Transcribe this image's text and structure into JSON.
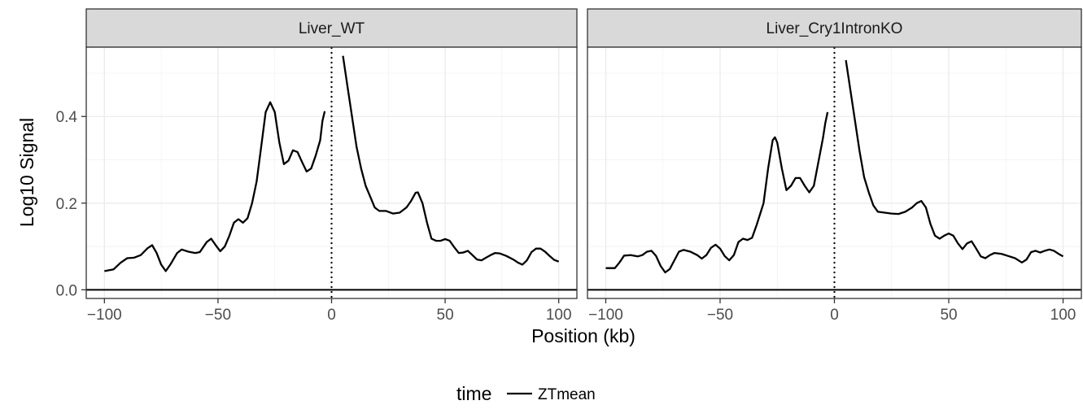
{
  "chart_data": {
    "type": "line",
    "xlabel": "Position (kb)",
    "ylabel": "Log10 Signal",
    "xlim": [
      -108,
      108
    ],
    "ylim": [
      -0.02,
      0.56
    ],
    "x_ticks": [
      -100,
      -50,
      0,
      50,
      100
    ],
    "x_tick_labels": [
      "−100",
      "−50",
      "0",
      "50",
      "100"
    ],
    "y_ticks": [
      0.0,
      0.2,
      0.4
    ],
    "y_tick_labels": [
      "0.0",
      "0.2",
      "0.4"
    ],
    "grid": true,
    "hline_y": 0,
    "vline_x": 0,
    "legend": {
      "title": "time",
      "entries": [
        "ZTmean"
      ],
      "position": "bottom"
    },
    "panels": [
      {
        "title": "Liver_WT",
        "series": [
          {
            "name": "ZTmean",
            "segments": [
              [
                [
                  -100,
                  0.043
                ],
                [
                  -96,
                  0.047
                ],
                [
                  -93,
                  0.062
                ],
                [
                  -90,
                  0.073
                ],
                [
                  -87,
                  0.074
                ],
                [
                  -84,
                  0.08
                ],
                [
                  -81,
                  0.096
                ],
                [
                  -79,
                  0.103
                ],
                [
                  -77,
                  0.085
                ],
                [
                  -75,
                  0.058
                ],
                [
                  -73,
                  0.043
                ],
                [
                  -71,
                  0.058
                ],
                [
                  -68,
                  0.085
                ],
                [
                  -66,
                  0.093
                ],
                [
                  -63,
                  0.088
                ],
                [
                  -60,
                  0.085
                ],
                [
                  -58,
                  0.087
                ],
                [
                  -55,
                  0.11
                ],
                [
                  -53,
                  0.118
                ],
                [
                  -51,
                  0.103
                ],
                [
                  -49,
                  0.089
                ],
                [
                  -47,
                  0.1
                ],
                [
                  -45,
                  0.125
                ],
                [
                  -43,
                  0.155
                ],
                [
                  -41,
                  0.163
                ],
                [
                  -39,
                  0.155
                ],
                [
                  -37,
                  0.165
                ],
                [
                  -35,
                  0.2
                ],
                [
                  -33,
                  0.25
                ],
                [
                  -31,
                  0.33
                ],
                [
                  -29,
                  0.41
                ],
                [
                  -27,
                  0.433
                ],
                [
                  -25,
                  0.41
                ],
                [
                  -23,
                  0.34
                ],
                [
                  -21,
                  0.29
                ],
                [
                  -19,
                  0.298
                ],
                [
                  -17,
                  0.322
                ],
                [
                  -15,
                  0.318
                ],
                [
                  -13,
                  0.295
                ],
                [
                  -11,
                  0.273
                ],
                [
                  -9,
                  0.28
                ],
                [
                  -7,
                  0.31
                ],
                [
                  -5,
                  0.345
                ],
                [
                  -4,
                  0.39
                ],
                [
                  -3,
                  0.412
                ]
              ],
              [
                [
                  5,
                  0.54
                ],
                [
                  7,
                  0.47
                ],
                [
                  9,
                  0.4
                ],
                [
                  11,
                  0.33
                ],
                [
                  13,
                  0.28
                ],
                [
                  15,
                  0.24
                ],
                [
                  17,
                  0.215
                ],
                [
                  19,
                  0.19
                ],
                [
                  21,
                  0.182
                ],
                [
                  24,
                  0.182
                ],
                [
                  27,
                  0.176
                ],
                [
                  30,
                  0.178
                ],
                [
                  33,
                  0.19
                ],
                [
                  35,
                  0.205
                ],
                [
                  37,
                  0.224
                ],
                [
                  38,
                  0.225
                ],
                [
                  40,
                  0.2
                ],
                [
                  42,
                  0.155
                ],
                [
                  44,
                  0.118
                ],
                [
                  46,
                  0.113
                ],
                [
                  48,
                  0.113
                ],
                [
                  50,
                  0.117
                ],
                [
                  52,
                  0.113
                ],
                [
                  54,
                  0.098
                ],
                [
                  56,
                  0.085
                ],
                [
                  58,
                  0.086
                ],
                [
                  60,
                  0.09
                ],
                [
                  62,
                  0.08
                ],
                [
                  64,
                  0.07
                ],
                [
                  66,
                  0.068
                ],
                [
                  68,
                  0.074
                ],
                [
                  70,
                  0.08
                ],
                [
                  72,
                  0.085
                ],
                [
                  74,
                  0.084
                ],
                [
                  77,
                  0.078
                ],
                [
                  80,
                  0.07
                ],
                [
                  82,
                  0.063
                ],
                [
                  84,
                  0.058
                ],
                [
                  86,
                  0.068
                ],
                [
                  88,
                  0.087
                ],
                [
                  90,
                  0.095
                ],
                [
                  92,
                  0.095
                ],
                [
                  94,
                  0.088
                ],
                [
                  96,
                  0.078
                ],
                [
                  98,
                  0.069
                ],
                [
                  100,
                  0.065
                ]
              ]
            ]
          }
        ]
      },
      {
        "title": "Liver_Cry1IntronKO",
        "series": [
          {
            "name": "ZTmean",
            "segments": [
              [
                [
                  -100,
                  0.05
                ],
                [
                  -96,
                  0.05
                ],
                [
                  -94,
                  0.063
                ],
                [
                  -92,
                  0.079
                ],
                [
                  -89,
                  0.08
                ],
                [
                  -86,
                  0.077
                ],
                [
                  -84,
                  0.08
                ],
                [
                  -82,
                  0.088
                ],
                [
                  -80,
                  0.09
                ],
                [
                  -78,
                  0.078
                ],
                [
                  -76,
                  0.055
                ],
                [
                  -74,
                  0.04
                ],
                [
                  -72,
                  0.048
                ],
                [
                  -70,
                  0.068
                ],
                [
                  -68,
                  0.088
                ],
                [
                  -66,
                  0.092
                ],
                [
                  -63,
                  0.088
                ],
                [
                  -60,
                  0.08
                ],
                [
                  -58,
                  0.072
                ],
                [
                  -56,
                  0.08
                ],
                [
                  -54,
                  0.097
                ],
                [
                  -52,
                  0.104
                ],
                [
                  -50,
                  0.095
                ],
                [
                  -48,
                  0.078
                ],
                [
                  -46,
                  0.068
                ],
                [
                  -44,
                  0.08
                ],
                [
                  -42,
                  0.11
                ],
                [
                  -40,
                  0.118
                ],
                [
                  -38,
                  0.115
                ],
                [
                  -36,
                  0.12
                ],
                [
                  -34,
                  0.15
                ],
                [
                  -31,
                  0.2
                ],
                [
                  -29,
                  0.28
                ],
                [
                  -27,
                  0.345
                ],
                [
                  -26,
                  0.352
                ],
                [
                  -25,
                  0.34
                ],
                [
                  -23,
                  0.28
                ],
                [
                  -21,
                  0.23
                ],
                [
                  -19,
                  0.24
                ],
                [
                  -17,
                  0.258
                ],
                [
                  -15,
                  0.258
                ],
                [
                  -13,
                  0.24
                ],
                [
                  -11,
                  0.225
                ],
                [
                  -9,
                  0.24
                ],
                [
                  -7,
                  0.295
                ],
                [
                  -5,
                  0.35
                ],
                [
                  -4,
                  0.385
                ],
                [
                  -3,
                  0.41
                ]
              ],
              [
                [
                  5,
                  0.53
                ],
                [
                  7,
                  0.46
                ],
                [
                  9,
                  0.39
                ],
                [
                  11,
                  0.32
                ],
                [
                  13,
                  0.26
                ],
                [
                  15,
                  0.225
                ],
                [
                  17,
                  0.195
                ],
                [
                  19,
                  0.18
                ],
                [
                  22,
                  0.178
                ],
                [
                  25,
                  0.176
                ],
                [
                  28,
                  0.175
                ],
                [
                  31,
                  0.18
                ],
                [
                  34,
                  0.19
                ],
                [
                  36,
                  0.2
                ],
                [
                  38,
                  0.205
                ],
                [
                  40,
                  0.19
                ],
                [
                  42,
                  0.152
                ],
                [
                  44,
                  0.125
                ],
                [
                  46,
                  0.118
                ],
                [
                  48,
                  0.125
                ],
                [
                  50,
                  0.13
                ],
                [
                  52,
                  0.125
                ],
                [
                  54,
                  0.107
                ],
                [
                  56,
                  0.094
                ],
                [
                  58,
                  0.107
                ],
                [
                  60,
                  0.112
                ],
                [
                  62,
                  0.095
                ],
                [
                  64,
                  0.077
                ],
                [
                  66,
                  0.073
                ],
                [
                  68,
                  0.08
                ],
                [
                  70,
                  0.085
                ],
                [
                  73,
                  0.083
                ],
                [
                  76,
                  0.078
                ],
                [
                  79,
                  0.073
                ],
                [
                  82,
                  0.063
                ],
                [
                  84,
                  0.07
                ],
                [
                  86,
                  0.087
                ],
                [
                  88,
                  0.09
                ],
                [
                  90,
                  0.086
                ],
                [
                  92,
                  0.09
                ],
                [
                  94,
                  0.093
                ],
                [
                  96,
                  0.09
                ],
                [
                  98,
                  0.083
                ],
                [
                  100,
                  0.077
                ]
              ]
            ]
          }
        ]
      }
    ]
  }
}
